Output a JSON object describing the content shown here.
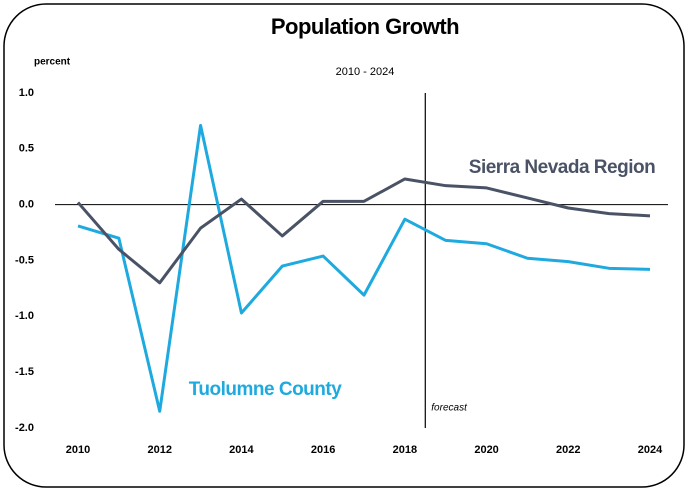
{
  "chart_data": {
    "type": "line",
    "title": "Population Growth",
    "subtitle": "2010 - 2024",
    "y_label": "percent",
    "x": [
      2010,
      2011,
      2012,
      2013,
      2014,
      2015,
      2016,
      2017,
      2018,
      2019,
      2020,
      2021,
      2022,
      2023,
      2024
    ],
    "series": [
      {
        "name": "Tuolumne County",
        "color": "#1eaadf",
        "values": [
          -0.19,
          -0.3,
          -1.85,
          0.71,
          -0.97,
          -0.55,
          -0.46,
          -0.81,
          -0.13,
          -0.32,
          -0.35,
          -0.48,
          -0.51,
          -0.57,
          -0.58
        ]
      },
      {
        "name": "Sierra Nevada Region",
        "color": "#4a5365",
        "values": [
          0.02,
          -0.4,
          -0.7,
          -0.21,
          0.05,
          -0.28,
          0.03,
          0.03,
          0.23,
          0.17,
          0.15,
          0.06,
          -0.03,
          -0.08,
          -0.1
        ]
      }
    ],
    "xlim": [
      2010,
      2024
    ],
    "xticks": [
      2010,
      2012,
      2014,
      2016,
      2018,
      2020,
      2022,
      2024
    ],
    "ylim": [
      -2,
      1
    ],
    "yticks": [
      {
        "value": 1,
        "label": "1.0"
      },
      0.5,
      {
        "value": 0,
        "label": "0.0"
      },
      -0.5,
      {
        "value": -1,
        "label": "-1.0"
      },
      -1.5,
      {
        "value": -2,
        "label": "-2.0"
      }
    ],
    "annotation": {
      "text": "forecast",
      "x": 2018.5
    }
  }
}
